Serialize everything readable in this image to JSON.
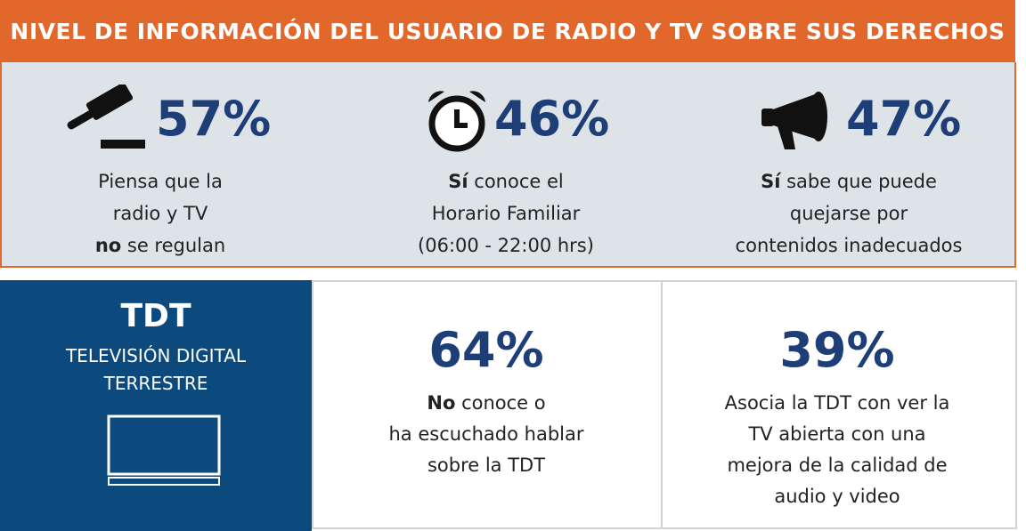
{
  "header": {
    "title": "NIVEL DE INFORMACIÓN DEL USUARIO DE RADIO Y TV SOBRE SUS DERECHOS"
  },
  "stats": [
    {
      "value": "57%",
      "lines": [
        {
          "text": "Piensa que la"
        },
        {
          "text": "radio y TV"
        },
        {
          "bold": "no",
          "text": "se regulan"
        }
      ]
    },
    {
      "value": "46%",
      "lines": [
        {
          "bold": "Sí",
          "text": "conoce el"
        },
        {
          "text": "Horario Familiar"
        },
        {
          "text": "(06:00 - 22:00 hrs)"
        }
      ]
    },
    {
      "value": "47%",
      "lines": [
        {
          "bold": "Sí",
          "text": "sabe que puede"
        },
        {
          "text": "quejarse por"
        },
        {
          "text": "contenidos inadecuados"
        }
      ]
    }
  ],
  "tdt": {
    "title": "TDT",
    "subtitle_lines": [
      "TELEVISIÓN DIGITAL",
      "TERRESTRE"
    ]
  },
  "tdt_stats": [
    {
      "value": "64%",
      "lines": [
        {
          "bold": "No",
          "text": "conoce o"
        },
        {
          "text": "ha escuchado hablar"
        },
        {
          "text": "sobre la TDT"
        }
      ]
    },
    {
      "value": "39%",
      "lines": [
        {
          "text": "Asocia la TDT con ver la"
        },
        {
          "text": "TV abierta con una"
        },
        {
          "text": "mejora de la calidad de"
        },
        {
          "text": "audio y video"
        }
      ]
    }
  ]
}
